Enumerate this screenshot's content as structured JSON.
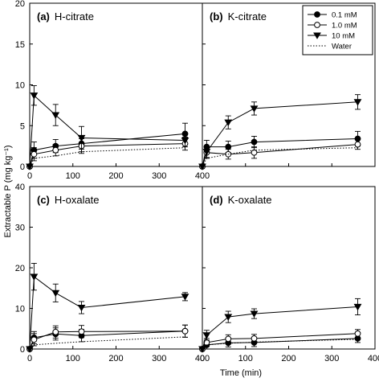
{
  "figure": {
    "ylabel": "Extractable P (mg kg⁻¹)",
    "xlabel": "Time (min)"
  },
  "legend": {
    "placement": "top-right of panel (b)",
    "entries": [
      {
        "label": "0.1 mM",
        "marker": "filled-circle",
        "line": "solid"
      },
      {
        "label": "1.0 mM",
        "marker": "open-circle",
        "line": "solid"
      },
      {
        "label": "10 mM",
        "marker": "filled-triangle-down",
        "line": "solid"
      },
      {
        "label": "Water",
        "marker": "none",
        "line": "dotted"
      }
    ]
  },
  "chart_data": [
    {
      "type": "line",
      "panel": "(a)",
      "title": "H-citrate",
      "xlim": [
        0,
        400
      ],
      "ylim": [
        0,
        20
      ],
      "x_ticks": [
        "0",
        "100",
        "200",
        "300",
        "400"
      ],
      "y_ticks": [
        "0",
        "5",
        "10",
        "15",
        "20"
      ],
      "grid": false,
      "series": [
        {
          "name": "0.1 mM",
          "x": [
            0,
            10,
            60,
            120,
            360
          ],
          "y": [
            0,
            2.0,
            2.5,
            2.8,
            4.0
          ],
          "err": [
            0,
            1.0,
            0.8,
            1.0,
            1.3
          ]
        },
        {
          "name": "1.0 mM",
          "x": [
            0,
            10,
            60,
            120,
            360
          ],
          "y": [
            0,
            1.5,
            2.0,
            2.5,
            2.8
          ],
          "err": [
            0,
            0.8,
            0.7,
            0.9,
            0.8
          ]
        },
        {
          "name": "10 mM",
          "x": [
            0,
            10,
            60,
            120,
            360
          ],
          "y": [
            0,
            8.7,
            6.3,
            3.5,
            3.2
          ],
          "err": [
            0,
            1.2,
            1.3,
            1.4,
            0.8
          ]
        },
        {
          "name": "Water",
          "x": [
            0,
            10,
            60,
            120,
            360
          ],
          "y": [
            0,
            1.0,
            1.3,
            1.8,
            2.3
          ],
          "err": []
        }
      ]
    },
    {
      "type": "line",
      "panel": "(b)",
      "title": "K-citrate",
      "xlim": [
        0,
        400
      ],
      "ylim": [
        0,
        20
      ],
      "x_ticks": [],
      "y_ticks": [],
      "grid": false,
      "series": [
        {
          "name": "0.1 mM",
          "x": [
            0,
            10,
            60,
            120,
            360
          ],
          "y": [
            0,
            2.4,
            2.4,
            3.0,
            3.4
          ],
          "err": [
            0,
            0.8,
            0.7,
            0.7,
            0.9
          ]
        },
        {
          "name": "1.0 mM",
          "x": [
            0,
            10,
            60,
            120,
            360
          ],
          "y": [
            0,
            1.7,
            1.5,
            1.7,
            2.7
          ],
          "err": [
            0,
            0.7,
            0.6,
            0.7,
            0.6
          ]
        },
        {
          "name": "10 mM",
          "x": [
            0,
            10,
            60,
            120,
            360
          ],
          "y": [
            0,
            1.8,
            5.4,
            7.1,
            7.9
          ],
          "err": [
            0,
            0.7,
            0.8,
            0.8,
            0.9
          ]
        },
        {
          "name": "Water",
          "x": [
            0,
            10,
            60,
            120,
            360
          ],
          "y": [
            0,
            1.0,
            1.5,
            2.0,
            2.3
          ],
          "err": []
        }
      ]
    },
    {
      "type": "line",
      "panel": "(c)",
      "title": "H-oxalate",
      "xlim": [
        0,
        400
      ],
      "ylim": [
        0,
        40
      ],
      "x_ticks": [
        "0",
        "100",
        "200",
        "300",
        "400"
      ],
      "y_ticks": [
        "0",
        "10",
        "20",
        "30",
        "40"
      ],
      "grid": false,
      "series": [
        {
          "name": "0.1 mM",
          "x": [
            0,
            10,
            60,
            120,
            360
          ],
          "y": [
            0,
            2.8,
            3.7,
            3.3,
            4.4
          ],
          "err": [
            0,
            1.5,
            1.5,
            1.5,
            1.5
          ]
        },
        {
          "name": "1.0 mM",
          "x": [
            0,
            10,
            60,
            120,
            360
          ],
          "y": [
            0,
            2.3,
            4.2,
            4.3,
            4.4
          ],
          "err": [
            0,
            1.5,
            1.5,
            1.5,
            1.5
          ]
        },
        {
          "name": "10 mM",
          "x": [
            0,
            10,
            60,
            120,
            360
          ],
          "y": [
            0,
            17.8,
            13.8,
            10.2,
            12.9
          ],
          "err": [
            0,
            3.3,
            2.2,
            1.5,
            1.0
          ]
        },
        {
          "name": "Water",
          "x": [
            0,
            10,
            60,
            120,
            360
          ],
          "y": [
            0,
            1.0,
            1.4,
            1.8,
            3.0
          ],
          "err": []
        }
      ]
    },
    {
      "type": "line",
      "panel": "(d)",
      "title": "K-oxalate",
      "xlim": [
        0,
        400
      ],
      "ylim": [
        0,
        40
      ],
      "x_ticks": [
        "0",
        "100",
        "200",
        "300",
        "400"
      ],
      "y_ticks": [],
      "grid": false,
      "series": [
        {
          "name": "0.1 mM",
          "x": [
            0,
            10,
            60,
            120,
            360
          ],
          "y": [
            0,
            1.0,
            1.5,
            1.6,
            2.6
          ],
          "err": [
            0,
            1.0,
            1.0,
            1.0,
            1.0
          ]
        },
        {
          "name": "1.0 mM",
          "x": [
            0,
            10,
            60,
            120,
            360
          ],
          "y": [
            0,
            1.6,
            2.5,
            2.6,
            3.8
          ],
          "err": [
            0,
            1.0,
            1.0,
            1.0,
            1.0
          ]
        },
        {
          "name": "10 mM",
          "x": [
            0,
            10,
            60,
            120,
            360
          ],
          "y": [
            0,
            3.4,
            7.9,
            8.7,
            10.4
          ],
          "err": [
            0,
            1.2,
            1.4,
            1.2,
            2.0
          ]
        },
        {
          "name": "Water",
          "x": [
            0,
            10,
            60,
            120,
            360
          ],
          "y": [
            0,
            1.0,
            1.4,
            1.7,
            2.4
          ],
          "err": []
        }
      ]
    }
  ]
}
